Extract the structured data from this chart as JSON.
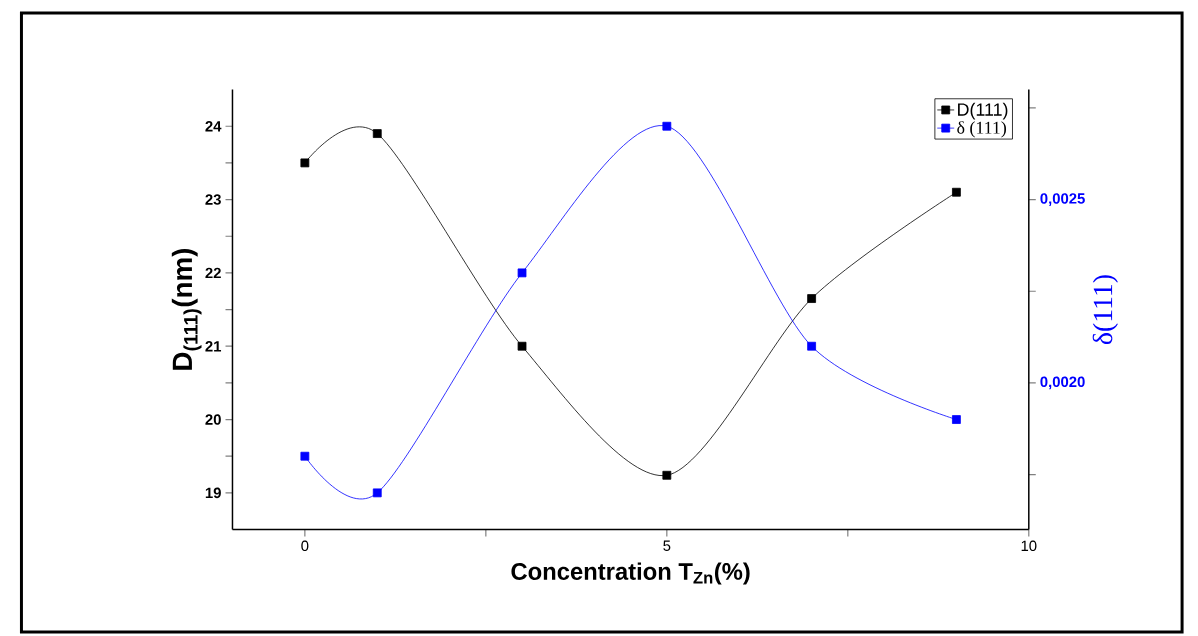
{
  "chart_data": {
    "type": "line",
    "xlabel": "Concentration T$_{Zn}$(%)",
    "ylabel": "D$_{(111)}$(nm)",
    "y2label": "δ(111)",
    "x": [
      0,
      1,
      3,
      5,
      7,
      9
    ],
    "series": [
      {
        "name": "D(111)",
        "color": "#000000",
        "values": [
          23.5,
          23.9,
          21.0,
          19.24,
          21.65,
          23.1
        ]
      },
      {
        "name": "δ (111)",
        "color": "#0000ff",
        "axis": "y2",
        "values": [
          0.0018,
          0.0017,
          0.0023,
          0.0027,
          0.0021,
          0.0019
        ]
      }
    ],
    "xlim": [
      -1,
      10
    ],
    "xticks": [
      0,
      {
        "value": 2.5,
        "label": null
      },
      5,
      {
        "value": 7.5,
        "label": null
      },
      10
    ],
    "ylim": [
      18.5,
      24.5
    ],
    "yticks": [
      19,
      {
        "value": 19.5,
        "label": null
      },
      20,
      {
        "value": 20.5,
        "label": null
      },
      21,
      {
        "value": 21.5,
        "label": null
      },
      22,
      {
        "value": 22.5,
        "label": null
      },
      23,
      {
        "value": 23.5,
        "label": null
      },
      24
    ],
    "y2lim": [
      0.0016,
      0.0028
    ],
    "y2ticks": [
      {
        "value": 0.00175,
        "label": null
      },
      {
        "value": 0.002,
        "label": "0,0020"
      },
      {
        "value": 0.00225,
        "label": null
      },
      {
        "value": 0.0025,
        "label": "0,0025"
      },
      {
        "value": 0.00275,
        "label": null
      }
    ],
    "marker": "square",
    "line_style": "solid",
    "legend": "top right"
  }
}
